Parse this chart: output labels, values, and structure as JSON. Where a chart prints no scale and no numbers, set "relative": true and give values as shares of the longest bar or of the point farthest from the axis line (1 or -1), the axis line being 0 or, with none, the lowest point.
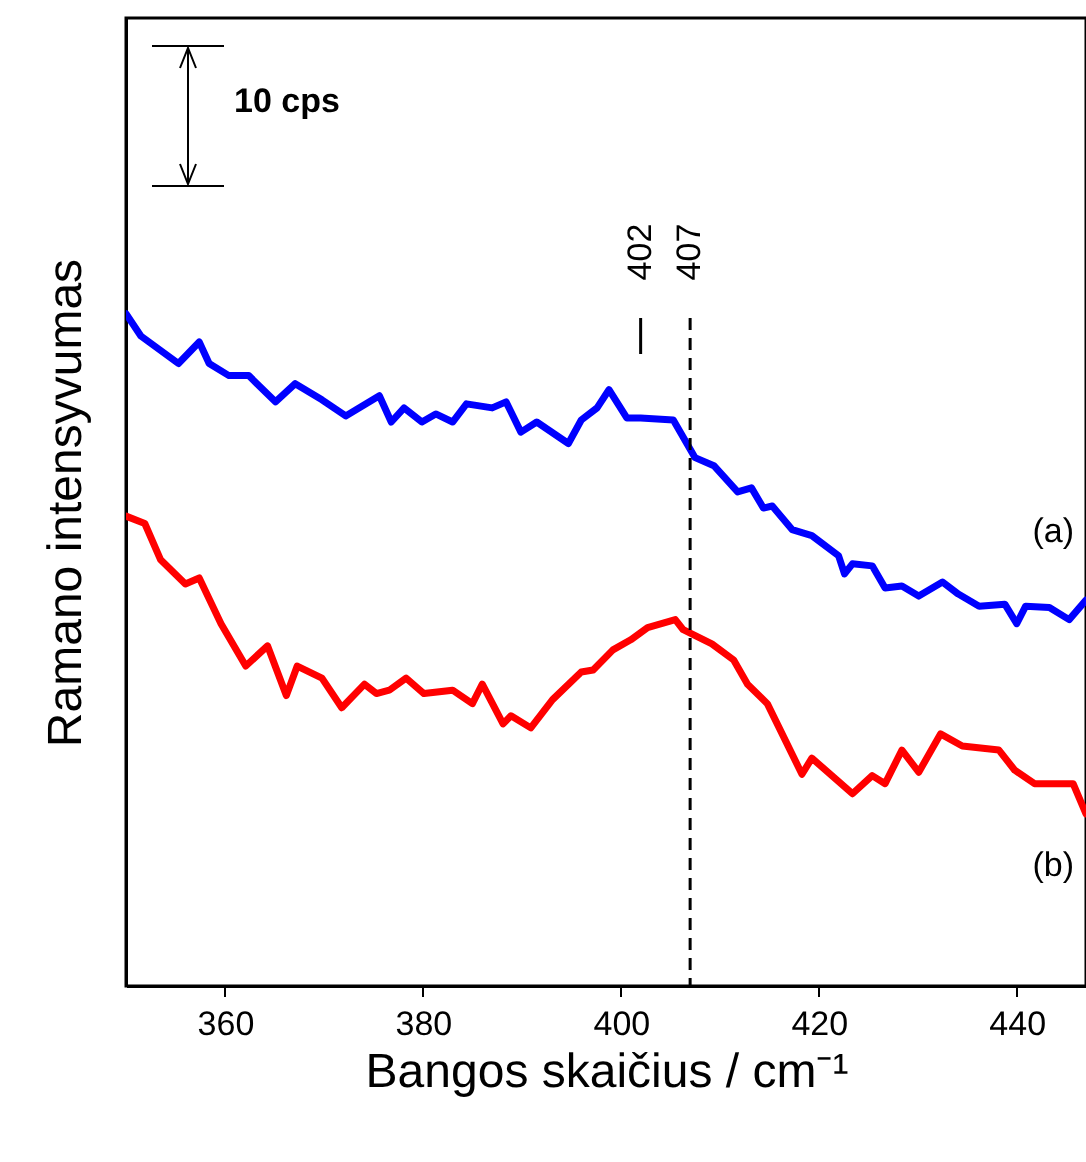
{
  "chart_data": {
    "type": "line",
    "relative": true,
    "xlabel": "Bangos skaičius / cm⁻¹",
    "ylabel": "Ramano intensyvumas",
    "xlim": [
      350,
      447
    ],
    "xticks": [
      360,
      380,
      400,
      420,
      440
    ],
    "grid": false,
    "marker": "none",
    "line_style": "solid",
    "annotations": [
      "10 cps"
    ],
    "ref_lines": [
      {
        "axis": "x",
        "value": 402,
        "label": "402",
        "line_style": "solid",
        "color": "#000000"
      },
      {
        "axis": "x",
        "value": 407,
        "label": "407",
        "line_style": "dashed",
        "color": "#000000"
      }
    ],
    "series": [
      {
        "name": "(a)",
        "color": "#0000ff",
        "x": [
          350,
          351.5,
          355.3,
          357.4,
          358.4,
          360.4,
          362.4,
          365.1,
          367.1,
          369.8,
          372.2,
          375.6,
          376.8,
          378.1,
          379.9,
          381.3,
          383.0,
          384.4,
          387.0,
          388.4,
          389.9,
          391.5,
          394.7,
          396.0,
          397.6,
          398.8,
          400.6,
          402.0,
          405.3,
          407.5,
          409.4,
          411.8,
          413.2,
          414.4,
          415.3,
          417.3,
          419.3,
          422.0,
          422.6,
          423.4,
          425.4,
          426.7,
          428.4,
          430.1,
          432.5,
          434.1,
          436.2,
          438.8,
          440.0,
          440.9,
          443.3,
          445.3,
          447
        ],
        "values": [
          1.0,
          0.967,
          0.926,
          0.958,
          0.926,
          0.908,
          0.908,
          0.869,
          0.896,
          0.872,
          0.848,
          0.878,
          0.839,
          0.86,
          0.839,
          0.851,
          0.839,
          0.866,
          0.86,
          0.869,
          0.824,
          0.839,
          0.807,
          0.842,
          0.86,
          0.887,
          0.845,
          0.845,
          0.842,
          0.786,
          0.774,
          0.735,
          0.741,
          0.711,
          0.714,
          0.679,
          0.67,
          0.64,
          0.613,
          0.628,
          0.625,
          0.592,
          0.595,
          0.58,
          0.601,
          0.583,
          0.565,
          0.568,
          0.539,
          0.565,
          0.563,
          0.545,
          0.574
        ]
      },
      {
        "name": "(b)",
        "color": "#ff0000",
        "x": [
          350,
          351.9,
          353.5,
          356.0,
          357.4,
          359.6,
          362.1,
          364.3,
          366.2,
          367.3,
          369.8,
          371.8,
          374.1,
          375.3,
          376.6,
          378.3,
          380.1,
          383.0,
          385.0,
          386.0,
          388.1,
          388.9,
          390.9,
          393.1,
          396.0,
          397.2,
          399.2,
          401.0,
          402.7,
          405.5,
          406.3,
          409.2,
          411.4,
          412.8,
          414.8,
          418.3,
          419.3,
          423.4,
          425.4,
          426.7,
          428.4,
          430.1,
          432.3,
          434.5,
          438.2,
          439.8,
          441.8,
          445.7,
          447
        ],
        "values": [
          0.699,
          0.688,
          0.634,
          0.598,
          0.607,
          0.539,
          0.476,
          0.506,
          0.432,
          0.476,
          0.458,
          0.414,
          0.449,
          0.435,
          0.44,
          0.458,
          0.435,
          0.44,
          0.42,
          0.449,
          0.39,
          0.402,
          0.384,
          0.426,
          0.467,
          0.47,
          0.5,
          0.515,
          0.533,
          0.545,
          0.53,
          0.509,
          0.485,
          0.449,
          0.42,
          0.315,
          0.339,
          0.286,
          0.313,
          0.301,
          0.351,
          0.318,
          0.375,
          0.357,
          0.351,
          0.321,
          0.301,
          0.301,
          0.256
        ]
      }
    ]
  }
}
